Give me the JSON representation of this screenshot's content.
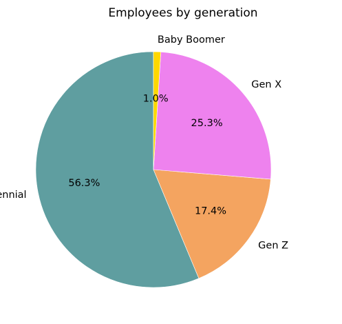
{
  "chart_data": {
    "type": "pie",
    "title": "Employees by generation",
    "slices": [
      {
        "label": "Millennial",
        "value": 56.3,
        "pct_label": "56.3%",
        "color": "#5f9ea0"
      },
      {
        "label": "Gen Z",
        "value": 17.4,
        "pct_label": "17.4%",
        "color": "#f4a460"
      },
      {
        "label": "Gen X",
        "value": 25.3,
        "pct_label": "25.3%",
        "color": "#ee82ee"
      },
      {
        "label": "Baby Boomer",
        "value": 1.0,
        "pct_label": "1.0%",
        "color": "#ffd700"
      }
    ],
    "start_angle_deg": 90,
    "direction": "counterclockwise",
    "legend": "none"
  }
}
